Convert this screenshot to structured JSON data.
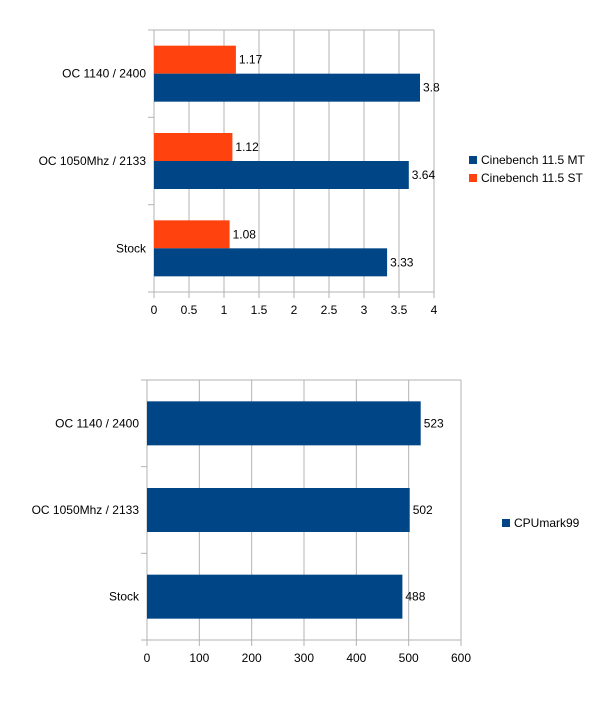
{
  "chart_data": [
    {
      "type": "bar",
      "orientation": "horizontal",
      "categories": [
        "OC 1140 / 2400",
        "OC 1050Mhz / 2133",
        "Stock"
      ],
      "series": [
        {
          "name": "Cinebench 11.5 ST",
          "color": "#ff420e",
          "values": [
            1.17,
            1.12,
            1.08
          ]
        },
        {
          "name": "Cinebench 11.5 MT",
          "color": "#004586",
          "values": [
            3.8,
            3.64,
            3.33
          ]
        }
      ],
      "legend_order": [
        1,
        0
      ],
      "xlim": [
        0,
        4
      ],
      "xticks": [
        0,
        0.5,
        1,
        1.5,
        2,
        2.5,
        3,
        3.5,
        4
      ],
      "grid": true,
      "legend_position": "right",
      "data_labels": true
    },
    {
      "type": "bar",
      "orientation": "horizontal",
      "categories": [
        "OC 1140 / 2400",
        "OC 1050Mhz / 2133",
        "Stock"
      ],
      "series": [
        {
          "name": "CPUmark99",
          "color": "#004586",
          "values": [
            523,
            502,
            488
          ]
        }
      ],
      "legend_order": [
        0
      ],
      "xlim": [
        0,
        600
      ],
      "xticks": [
        0,
        100,
        200,
        300,
        400,
        500,
        600
      ],
      "grid": true,
      "legend_position": "right",
      "data_labels": true
    }
  ]
}
